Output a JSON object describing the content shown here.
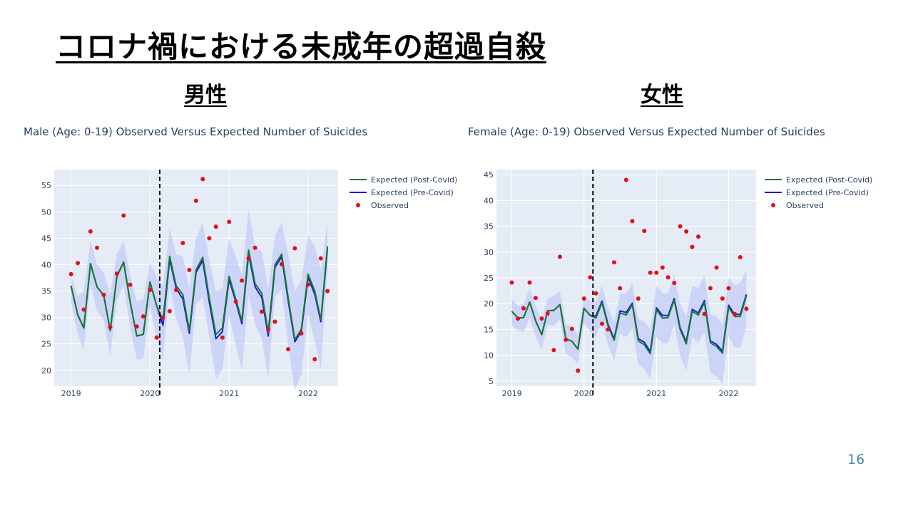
{
  "slide": {
    "title": "コロナ禍における未成年の超過自殺",
    "subtitle_male": "男性",
    "subtitle_female": "女性",
    "page_number": "16"
  },
  "colors": {
    "post_covid": "#1a7a2a",
    "pre_covid": "#1a1adc",
    "observed": "#e0101a",
    "band": "#c3cdf7",
    "plot_bg": "#e5ecf6",
    "grid": "#ffffff"
  },
  "chart_data": [
    {
      "type": "line",
      "title": "Male (Age: 0-19) Observed Versus Expected Number of Suicides",
      "x_tick_labels": [
        "2019",
        "2020",
        "2021",
        "2022"
      ],
      "x_range": [
        "2018-10-15",
        "2022-05-20"
      ],
      "ylim": [
        17,
        58
      ],
      "y_ticks": [
        20,
        25,
        30,
        35,
        40,
        45,
        50,
        55
      ],
      "x": [
        "2019-01",
        "2019-02",
        "2019-03",
        "2019-04",
        "2019-05",
        "2019-06",
        "2019-07",
        "2019-08",
        "2019-09",
        "2019-10",
        "2019-11",
        "2019-12",
        "2020-01",
        "2020-02",
        "2020-03",
        "2020-04",
        "2020-05",
        "2020-06",
        "2020-07",
        "2020-08",
        "2020-09",
        "2020-10",
        "2020-11",
        "2020-12",
        "2021-01",
        "2021-02",
        "2021-03",
        "2021-04",
        "2021-05",
        "2021-06",
        "2021-07",
        "2021-08",
        "2021-09",
        "2021-10",
        "2021-11",
        "2021-12",
        "2022-01",
        "2022-02",
        "2022-03",
        "2022-04"
      ],
      "vline": "2020-02-15",
      "legend": [
        "Expected (Post-Covid)",
        "Expected (Pre-Covid)",
        "Observed"
      ],
      "series": [
        {
          "name": "Expected (Post-Covid)",
          "values": [
            36,
            30.5,
            28,
            40.2,
            35.8,
            34.2,
            27.5,
            37.8,
            40.5,
            33,
            26.5,
            26.8,
            36.7,
            32.2,
            29.5,
            41.6,
            36,
            34.3,
            27.5,
            39,
            41.4,
            33.8,
            26.8,
            28,
            37.8,
            33.5,
            29.3,
            42.8,
            36.4,
            34.6,
            27.2,
            40,
            42,
            33.8,
            25.8,
            27.8,
            38.2,
            35,
            29.6,
            43.5
          ]
        },
        {
          "name": "Expected (Pre-Covid)",
          "values": [
            36,
            30.5,
            28,
            40.2,
            35.8,
            34.2,
            27.5,
            37.8,
            40.5,
            33,
            26.5,
            26.8,
            36.7,
            32.2,
            28.5,
            41,
            35.5,
            33.5,
            27,
            38.5,
            40.8,
            33,
            26,
            27.3,
            37.2,
            33,
            28.8,
            42,
            35.8,
            33.8,
            26.5,
            39.5,
            41.5,
            33.2,
            25.4,
            27.4,
            37.6,
            34.4,
            29.2,
            43
          ]
        },
        {
          "name": "Observed",
          "values": [
            38.2,
            40.3,
            31.5,
            46.3,
            43.2,
            34.3,
            28.2,
            38.3,
            49.3,
            36.2,
            28.3,
            30.2,
            35.2,
            26.2,
            30,
            31.2,
            35.2,
            44.1,
            39,
            52.1,
            56.2,
            45,
            47.2,
            26.2,
            48.1,
            33,
            37,
            41.2,
            43.2,
            31.1,
            27.7,
            29.2,
            40.1,
            24,
            43.1,
            27,
            36.2,
            22.1,
            41.2,
            35
          ]
        },
        {
          "name": "band_upper",
          "values": [
            38,
            34,
            35,
            44.5,
            40,
            38.5,
            34.5,
            42,
            44.5,
            38,
            33,
            33.5,
            40.5,
            37.5,
            36,
            47,
            42,
            41.5,
            35.5,
            45,
            48,
            41,
            35,
            35.5,
            45,
            41.5,
            38,
            50.5,
            43.5,
            42.5,
            35.5,
            45.5,
            48,
            42,
            35,
            37,
            45.5,
            43.5,
            39,
            48
          ]
        },
        {
          "name": "band_lower",
          "values": [
            33,
            26.8,
            23.8,
            36.2,
            31.2,
            29.5,
            22.7,
            33.2,
            36,
            28.3,
            22,
            22.2,
            32,
            26.3,
            21.8,
            36,
            29.8,
            26.3,
            19.2,
            32.5,
            33.8,
            26.3,
            18.3,
            20.2,
            30.3,
            24.8,
            20,
            34.2,
            28.7,
            26,
            18.5,
            34,
            35.2,
            24.5,
            16.2,
            19.2,
            30.7,
            25.5,
            20.3,
            39
          ]
        }
      ]
    },
    {
      "type": "line",
      "title": "Female (Age: 0-19) Observed Versus Expected Number of Suicides",
      "x_tick_labels": [
        "2019",
        "2020",
        "2021",
        "2022"
      ],
      "x_range": [
        "2018-10-15",
        "2022-05-20"
      ],
      "ylim": [
        4,
        46
      ],
      "y_ticks": [
        5,
        10,
        15,
        20,
        25,
        30,
        35,
        40,
        45
      ],
      "x": [
        "2019-01",
        "2019-02",
        "2019-03",
        "2019-04",
        "2019-05",
        "2019-06",
        "2019-07",
        "2019-08",
        "2019-09",
        "2019-10",
        "2019-11",
        "2019-12",
        "2020-01",
        "2020-02",
        "2020-03",
        "2020-04",
        "2020-05",
        "2020-06",
        "2020-07",
        "2020-08",
        "2020-09",
        "2020-10",
        "2020-11",
        "2020-12",
        "2021-01",
        "2021-02",
        "2021-03",
        "2021-04",
        "2021-05",
        "2021-06",
        "2021-07",
        "2021-08",
        "2021-09",
        "2021-10",
        "2021-11",
        "2021-12",
        "2022-01",
        "2022-02",
        "2022-03",
        "2022-04"
      ],
      "vline": "2020-02-15",
      "legend": [
        "Expected (Post-Covid)",
        "Expected (Pre-Covid)",
        "Observed"
      ],
      "series": [
        {
          "name": "Expected (Post-Covid)",
          "values": [
            18.5,
            17.2,
            17.3,
            20.3,
            16.7,
            14,
            18.6,
            18.7,
            19.8,
            13.2,
            12.7,
            11.2,
            19.1,
            17.7,
            17.2,
            20.2,
            15.7,
            12.9,
            18.2,
            17.8,
            19.8,
            12.8,
            12,
            10.3,
            18.8,
            17.2,
            17.3,
            20.7,
            15,
            12.2,
            18.5,
            17.8,
            20.2,
            12.4,
            11.7,
            10.4,
            19.3,
            17.5,
            17.5,
            21.5
          ]
        },
        {
          "name": "Expected (Pre-Covid)",
          "values": [
            18.5,
            17.2,
            17.3,
            20.3,
            16.7,
            14,
            18.6,
            18.7,
            19.8,
            13.2,
            12.7,
            11.2,
            19.1,
            17.7,
            17.6,
            20.5,
            16,
            13.2,
            18.6,
            18.3,
            20.1,
            13.2,
            12.5,
            10.7,
            19.2,
            17.7,
            17.7,
            21,
            15.3,
            12.6,
            18.9,
            18.2,
            20.6,
            12.8,
            12.1,
            10.8,
            19.7,
            17.9,
            17.9,
            21.8
          ]
        },
        {
          "name": "Observed",
          "values": [
            24.1,
            17.1,
            19.1,
            24.1,
            21.1,
            17.1,
            18.1,
            11,
            29.1,
            13,
            15.1,
            7,
            21,
            25.1,
            22,
            16.1,
            15,
            28,
            23,
            44,
            36,
            21,
            34.1,
            26,
            26,
            27,
            25.1,
            24,
            35,
            34,
            31,
            33,
            18,
            23,
            27,
            21,
            23,
            18,
            29,
            19
          ]
        },
        {
          "name": "band_upper",
          "values": [
            21,
            19.5,
            20,
            23,
            19.5,
            17,
            21,
            21.5,
            22.5,
            16,
            15.5,
            14,
            21.5,
            20.5,
            20.5,
            23.5,
            19,
            16.5,
            22,
            22,
            24,
            17,
            16.5,
            15,
            23.5,
            22,
            22,
            25.5,
            20,
            17.5,
            23.5,
            23,
            25.5,
            18,
            17.5,
            16,
            25,
            23.5,
            24,
            26.5
          ]
        },
        {
          "name": "band_lower",
          "values": [
            15.8,
            14.8,
            14.5,
            17.2,
            13.7,
            11,
            15.9,
            15.7,
            16.9,
            10.3,
            9.6,
            8.3,
            16.2,
            14.7,
            13.5,
            16.5,
            12,
            8.9,
            14.2,
            13.5,
            15.2,
            8.3,
            7.3,
            5.4,
            13.5,
            12.3,
            12.3,
            16,
            9.9,
            7,
            13.5,
            12.4,
            14.5,
            6.6,
            5.8,
            4.5,
            13.7,
            11.5,
            11.5,
            15.5
          ]
        }
      ]
    }
  ]
}
